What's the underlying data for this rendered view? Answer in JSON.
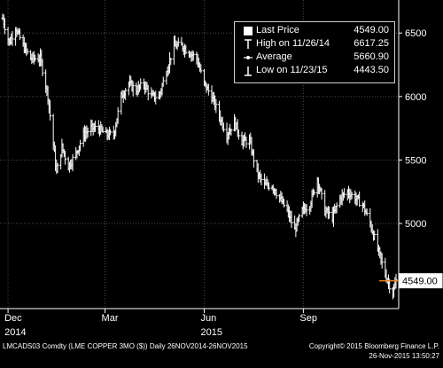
{
  "chart_data": {
    "type": "line",
    "ylim": [
      4330,
      6760
    ],
    "yticks": [
      5000,
      5500,
      6000,
      6500
    ],
    "ytick_labels": [
      "5000",
      "5500",
      "6000",
      "6500"
    ],
    "x_start": "2014-11-26",
    "x_end": "2015-11-26",
    "xticks": [
      {
        "date": "2014-12-01",
        "label": "Dec",
        "sublabel": "2014"
      },
      {
        "date": "2015-03-01",
        "label": "Mar",
        "sublabel": ""
      },
      {
        "date": "2015-06-01",
        "label": "Jun",
        "sublabel": "2015"
      },
      {
        "date": "2015-09-01",
        "label": "Sep",
        "sublabel": ""
      }
    ],
    "series": [
      {
        "name": "Last Price",
        "points": [
          [
            "2014-11-26",
            6617
          ],
          [
            "2014-12-02",
            6420
          ],
          [
            "2014-12-08",
            6540
          ],
          [
            "2014-12-15",
            6400
          ],
          [
            "2014-12-22",
            6300
          ],
          [
            "2014-12-31",
            6300
          ],
          [
            "2015-01-07",
            6000
          ],
          [
            "2015-01-13",
            5550
          ],
          [
            "2015-01-15",
            5400
          ],
          [
            "2015-01-20",
            5600
          ],
          [
            "2015-01-26",
            5450
          ],
          [
            "2015-02-02",
            5550
          ],
          [
            "2015-02-09",
            5700
          ],
          [
            "2015-02-16",
            5750
          ],
          [
            "2015-02-23",
            5750
          ],
          [
            "2015-03-02",
            5700
          ],
          [
            "2015-03-09",
            5700
          ],
          [
            "2015-03-16",
            6000
          ],
          [
            "2015-03-23",
            6100
          ],
          [
            "2015-03-30",
            6050
          ],
          [
            "2015-04-06",
            6100
          ],
          [
            "2015-04-13",
            6000
          ],
          [
            "2015-04-20",
            6000
          ],
          [
            "2015-04-27",
            6200
          ],
          [
            "2015-05-04",
            6400
          ],
          [
            "2015-05-11",
            6400
          ],
          [
            "2015-05-18",
            6350
          ],
          [
            "2015-05-25",
            6300
          ],
          [
            "2015-06-01",
            6100
          ],
          [
            "2015-06-08",
            6000
          ],
          [
            "2015-06-15",
            5850
          ],
          [
            "2015-06-22",
            5700
          ],
          [
            "2015-06-29",
            5800
          ],
          [
            "2015-07-06",
            5650
          ],
          [
            "2015-07-13",
            5650
          ],
          [
            "2015-07-20",
            5400
          ],
          [
            "2015-07-27",
            5300
          ],
          [
            "2015-08-03",
            5300
          ],
          [
            "2015-08-10",
            5200
          ],
          [
            "2015-08-17",
            5100
          ],
          [
            "2015-08-24",
            4950
          ],
          [
            "2015-08-31",
            5100
          ],
          [
            "2015-09-07",
            5150
          ],
          [
            "2015-09-14",
            5350
          ],
          [
            "2015-09-21",
            5100
          ],
          [
            "2015-09-28",
            5050
          ],
          [
            "2015-10-05",
            5200
          ],
          [
            "2015-10-12",
            5250
          ],
          [
            "2015-10-19",
            5200
          ],
          [
            "2015-10-26",
            5150
          ],
          [
            "2015-11-02",
            5000
          ],
          [
            "2015-11-09",
            4800
          ],
          [
            "2015-11-16",
            4600
          ],
          [
            "2015-11-23",
            4450
          ],
          [
            "2015-11-26",
            4549
          ]
        ]
      }
    ],
    "last_price_label": "4549.00",
    "legend": [
      {
        "symbol": "square",
        "label": "Last Price",
        "value": "4549.00"
      },
      {
        "symbol": "high",
        "label": "High on 11/26/14",
        "value": "6617.25"
      },
      {
        "symbol": "average",
        "label": "Average",
        "value": "5660.90"
      },
      {
        "symbol": "low",
        "label": "Low on 11/23/15",
        "value": "4443.50"
      }
    ],
    "legend_position": "top-right",
    "grid": true,
    "colors": {
      "background": "#000000",
      "bars": "#ffffff",
      "grid": "#4a4a4a",
      "marker": "#e8801f"
    }
  },
  "footer": {
    "ticker": "LMCADS03 Comdty (LME COPPER   3MO ($))  Daily 26NOV2014-26NOV2015",
    "copyright": "Copyright© 2015 Bloomberg Finance L.P.",
    "timestamp": "26-Nov-2015 13:50:27"
  }
}
